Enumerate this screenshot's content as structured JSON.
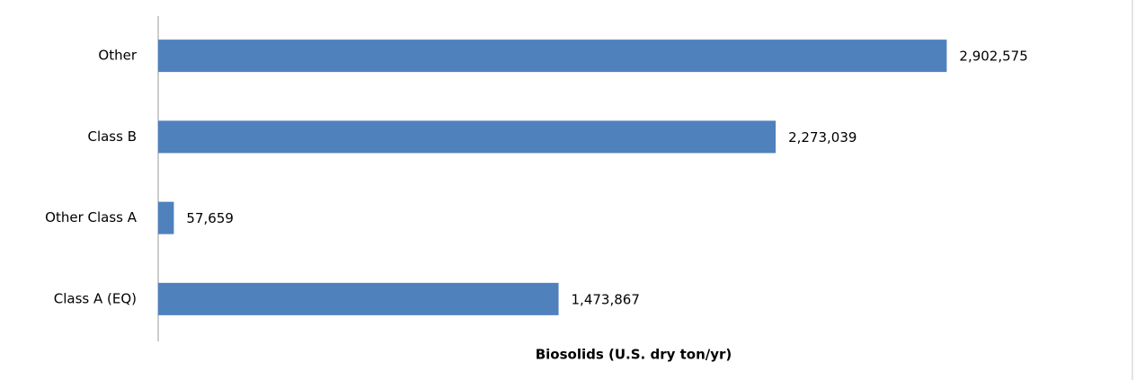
{
  "chart_data": {
    "type": "bar",
    "orientation": "horizontal",
    "categories": [
      "Other",
      "Class B",
      "Other Class A",
      "Class A (EQ)"
    ],
    "values": [
      2902575,
      2273039,
      57659,
      1473867
    ],
    "value_labels": [
      "2,902,575",
      "2,273,039",
      "57,659",
      "1,473,867"
    ],
    "color": "#4f81bd",
    "xlabel": "Biosolids (U.S. dry ton/yr)",
    "xlim": [
      0,
      3500000
    ]
  }
}
